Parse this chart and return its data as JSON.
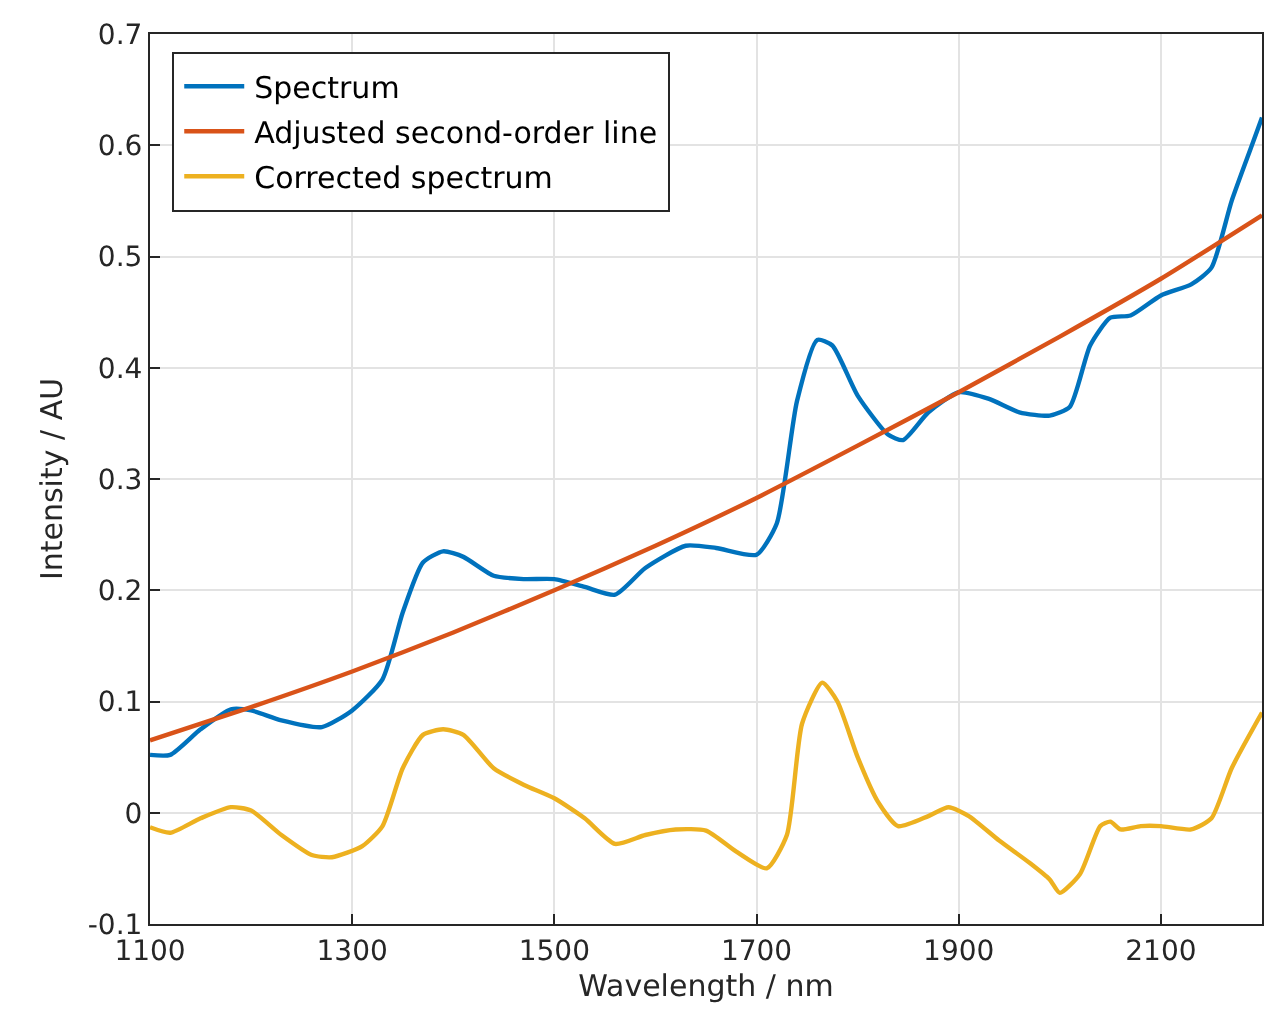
{
  "chart_data": {
    "type": "line",
    "xlabel": "Wavelength / nm",
    "ylabel": "Intensity / AU",
    "xlim": [
      1100,
      2200
    ],
    "ylim": [
      -0.1,
      0.7
    ],
    "xticks": [
      1100,
      1300,
      1500,
      1700,
      1900,
      2100
    ],
    "yticks": [
      -0.1,
      0,
      0.1,
      0.2,
      0.3,
      0.4,
      0.5,
      0.6,
      0.7
    ],
    "grid": true,
    "legend": "top left",
    "marker": "none",
    "line_style": "solid",
    "series": [
      {
        "name": "Spectrum",
        "color": "#0072bd",
        "x": [
          1100,
          1120,
          1150,
          1180,
          1200,
          1230,
          1270,
          1300,
          1330,
          1350,
          1370,
          1390,
          1410,
          1440,
          1470,
          1500,
          1530,
          1560,
          1590,
          1630,
          1660,
          1700,
          1720,
          1740,
          1760,
          1775,
          1800,
          1830,
          1845,
          1870,
          1900,
          1930,
          1960,
          1990,
          2010,
          2030,
          2050,
          2070,
          2100,
          2130,
          2150,
          2170,
          2190,
          2200
        ],
        "values": [
          0.052,
          0.052,
          0.075,
          0.093,
          0.092,
          0.083,
          0.077,
          0.092,
          0.12,
          0.18,
          0.225,
          0.235,
          0.23,
          0.213,
          0.21,
          0.21,
          0.203,
          0.196,
          0.22,
          0.24,
          0.238,
          0.232,
          0.26,
          0.37,
          0.425,
          0.42,
          0.375,
          0.34,
          0.335,
          0.36,
          0.378,
          0.372,
          0.36,
          0.357,
          0.365,
          0.42,
          0.445,
          0.447,
          0.465,
          0.475,
          0.49,
          0.55,
          0.6,
          0.625
        ]
      },
      {
        "name": "Adjusted second-order line",
        "color": "#d95319",
        "x": [
          1100,
          1200,
          1300,
          1400,
          1500,
          1600,
          1700,
          1800,
          1900,
          2000,
          2100,
          2200
        ],
        "values": [
          0.065,
          0.095,
          0.127,
          0.162,
          0.2,
          0.24,
          0.283,
          0.33,
          0.378,
          0.428,
          0.48,
          0.537
        ]
      },
      {
        "name": "Corrected spectrum",
        "color": "#edb120",
        "x": [
          1100,
          1120,
          1150,
          1180,
          1200,
          1230,
          1260,
          1280,
          1310,
          1330,
          1350,
          1370,
          1390,
          1410,
          1440,
          1470,
          1500,
          1530,
          1560,
          1590,
          1620,
          1650,
          1680,
          1710,
          1730,
          1745,
          1765,
          1780,
          1800,
          1820,
          1840,
          1870,
          1890,
          1910,
          1940,
          1970,
          1990,
          2000,
          2020,
          2040,
          2050,
          2060,
          2080,
          2100,
          2130,
          2150,
          2170,
          2200
        ],
        "values": [
          -0.013,
          -0.018,
          -0.005,
          0.005,
          0.002,
          -0.02,
          -0.038,
          -0.04,
          -0.03,
          -0.012,
          0.04,
          0.07,
          0.075,
          0.07,
          0.04,
          0.025,
          0.013,
          -0.005,
          -0.028,
          -0.02,
          -0.015,
          -0.016,
          -0.035,
          -0.05,
          -0.02,
          0.08,
          0.117,
          0.1,
          0.05,
          0.01,
          -0.012,
          -0.003,
          0.005,
          -0.003,
          -0.025,
          -0.045,
          -0.06,
          -0.072,
          -0.055,
          -0.012,
          -0.008,
          -0.015,
          -0.012,
          -0.012,
          -0.015,
          -0.005,
          0.04,
          0.09
        ]
      }
    ]
  }
}
